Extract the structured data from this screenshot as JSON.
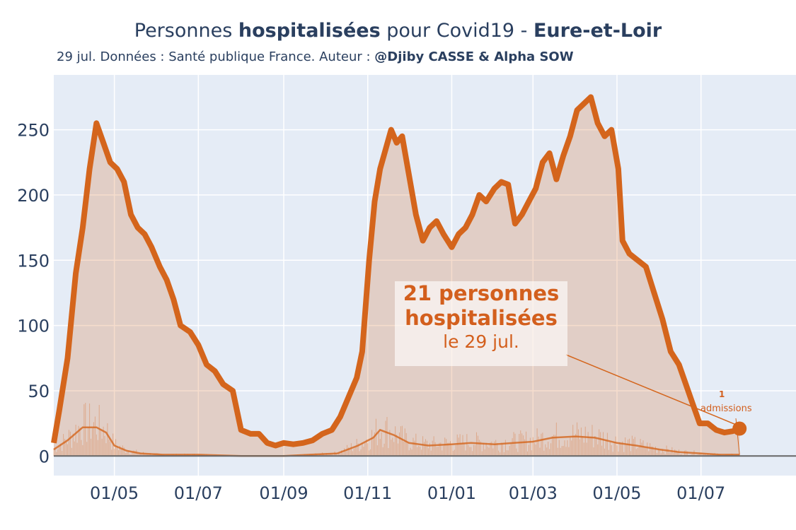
{
  "header": {
    "title_prefix": "Personnes ",
    "title_bold1": "hospitalisées",
    "title_mid": " pour Covid19 - ",
    "title_bold2": "Eure-et-Loir",
    "subtitle_prefix": "29 jul. Données : Santé publique France. Auteur : ",
    "subtitle_bold": "@Djiby CASSE & Alpha SOW"
  },
  "annotation": {
    "line1": "21 personnes",
    "line2": "hospitalisées",
    "line3": "le 29 jul.",
    "admissions_count": "1",
    "admissions_label": "admissions"
  },
  "colors": {
    "main_line": "#d4651c",
    "fill": "rgba(212,101,28,0.22)",
    "plot_bg": "#e5ecf6",
    "text": "#2a3f5f"
  },
  "chart_data": {
    "type": "area",
    "title": "Personnes hospitalisées pour Covid19 - Eure-et-Loir",
    "x_ticks": [
      "01/05",
      "01/07",
      "01/09",
      "01/11",
      "01/01",
      "01/03",
      "01/05",
      "01/07"
    ],
    "y_ticks": [
      0,
      50,
      100,
      150,
      200,
      250
    ],
    "xlim": [
      "2020-03-18",
      "2021-09-08"
    ],
    "ylim": [
      -15,
      292
    ],
    "grid": true,
    "series": [
      {
        "kind": "hospitalisations",
        "points": [
          [
            "2020-03-18",
            10
          ],
          [
            "2020-03-22",
            35
          ],
          [
            "2020-03-28",
            75
          ],
          [
            "2020-04-03",
            140
          ],
          [
            "2020-04-08",
            175
          ],
          [
            "2020-04-13",
            220
          ],
          [
            "2020-04-18",
            255
          ],
          [
            "2020-04-23",
            240
          ],
          [
            "2020-04-28",
            225
          ],
          [
            "2020-05-03",
            220
          ],
          [
            "2020-05-08",
            210
          ],
          [
            "2020-05-13",
            185
          ],
          [
            "2020-05-18",
            175
          ],
          [
            "2020-05-23",
            170
          ],
          [
            "2020-05-28",
            160
          ],
          [
            "2020-06-03",
            145
          ],
          [
            "2020-06-08",
            135
          ],
          [
            "2020-06-13",
            120
          ],
          [
            "2020-06-18",
            100
          ],
          [
            "2020-06-25",
            95
          ],
          [
            "2020-07-01",
            85
          ],
          [
            "2020-07-07",
            70
          ],
          [
            "2020-07-13",
            65
          ],
          [
            "2020-07-19",
            55
          ],
          [
            "2020-07-26",
            50
          ],
          [
            "2020-08-01",
            20
          ],
          [
            "2020-08-08",
            17
          ],
          [
            "2020-08-14",
            17
          ],
          [
            "2020-08-20",
            10
          ],
          [
            "2020-08-26",
            8
          ],
          [
            "2020-09-01",
            10
          ],
          [
            "2020-09-08",
            9
          ],
          [
            "2020-09-15",
            10
          ],
          [
            "2020-09-22",
            12
          ],
          [
            "2020-09-29",
            17
          ],
          [
            "2020-10-06",
            20
          ],
          [
            "2020-10-12",
            30
          ],
          [
            "2020-10-18",
            45
          ],
          [
            "2020-10-24",
            60
          ],
          [
            "2020-10-28",
            80
          ],
          [
            "2020-11-02",
            150
          ],
          [
            "2020-11-06",
            195
          ],
          [
            "2020-11-10",
            220
          ],
          [
            "2020-11-14",
            235
          ],
          [
            "2020-11-18",
            250
          ],
          [
            "2020-11-22",
            240
          ],
          [
            "2020-11-26",
            245
          ],
          [
            "2020-12-01",
            215
          ],
          [
            "2020-12-06",
            185
          ],
          [
            "2020-12-11",
            165
          ],
          [
            "2020-12-16",
            175
          ],
          [
            "2020-12-21",
            180
          ],
          [
            "2020-12-26",
            170
          ],
          [
            "2021-01-01",
            160
          ],
          [
            "2021-01-06",
            170
          ],
          [
            "2021-01-11",
            175
          ],
          [
            "2021-01-16",
            185
          ],
          [
            "2021-01-21",
            200
          ],
          [
            "2021-01-26",
            195
          ],
          [
            "2021-02-01",
            205
          ],
          [
            "2021-02-06",
            210
          ],
          [
            "2021-02-11",
            208
          ],
          [
            "2021-02-16",
            178
          ],
          [
            "2021-02-21",
            185
          ],
          [
            "2021-02-26",
            195
          ],
          [
            "2021-03-03",
            205
          ],
          [
            "2021-03-08",
            225
          ],
          [
            "2021-03-13",
            232
          ],
          [
            "2021-03-18",
            212
          ],
          [
            "2021-03-23",
            230
          ],
          [
            "2021-03-28",
            245
          ],
          [
            "2021-04-02",
            265
          ],
          [
            "2021-04-07",
            270
          ],
          [
            "2021-04-12",
            275
          ],
          [
            "2021-04-17",
            255
          ],
          [
            "2021-04-22",
            245
          ],
          [
            "2021-04-27",
            250
          ],
          [
            "2021-05-02",
            220
          ],
          [
            "2021-05-05",
            165
          ],
          [
            "2021-05-10",
            155
          ],
          [
            "2021-05-16",
            150
          ],
          [
            "2021-05-22",
            145
          ],
          [
            "2021-05-28",
            125
          ],
          [
            "2021-06-03",
            105
          ],
          [
            "2021-06-09",
            80
          ],
          [
            "2021-06-15",
            70
          ],
          [
            "2021-06-20",
            55
          ],
          [
            "2021-06-25",
            40
          ],
          [
            "2021-06-30",
            25
          ],
          [
            "2021-07-06",
            25
          ],
          [
            "2021-07-12",
            20
          ],
          [
            "2021-07-18",
            18
          ],
          [
            "2021-07-24",
            19
          ],
          [
            "2021-07-29",
            21
          ]
        ]
      },
      {
        "kind": "admissions moyenne",
        "points": [
          [
            "2020-03-18",
            5
          ],
          [
            "2020-03-28",
            12
          ],
          [
            "2020-04-08",
            22
          ],
          [
            "2020-04-18",
            22
          ],
          [
            "2020-04-25",
            18
          ],
          [
            "2020-05-01",
            8
          ],
          [
            "2020-05-10",
            4
          ],
          [
            "2020-05-20",
            2
          ],
          [
            "2020-06-05",
            1
          ],
          [
            "2020-07-01",
            1
          ],
          [
            "2020-08-01",
            0
          ],
          [
            "2020-09-01",
            0
          ],
          [
            "2020-09-20",
            1
          ],
          [
            "2020-10-10",
            2
          ],
          [
            "2020-10-25",
            8
          ],
          [
            "2020-11-05",
            14
          ],
          [
            "2020-11-10",
            20
          ],
          [
            "2020-11-20",
            16
          ],
          [
            "2020-12-01",
            10
          ],
          [
            "2020-12-15",
            8
          ],
          [
            "2021-01-01",
            9
          ],
          [
            "2021-01-15",
            10
          ],
          [
            "2021-02-01",
            9
          ],
          [
            "2021-02-15",
            10
          ],
          [
            "2021-03-01",
            11
          ],
          [
            "2021-03-15",
            14
          ],
          [
            "2021-04-01",
            15
          ],
          [
            "2021-04-15",
            14
          ],
          [
            "2021-05-01",
            10
          ],
          [
            "2021-05-15",
            8
          ],
          [
            "2021-06-01",
            5
          ],
          [
            "2021-06-15",
            3
          ],
          [
            "2021-07-01",
            2
          ],
          [
            "2021-07-15",
            1
          ],
          [
            "2021-07-29",
            1
          ]
        ]
      }
    ]
  }
}
